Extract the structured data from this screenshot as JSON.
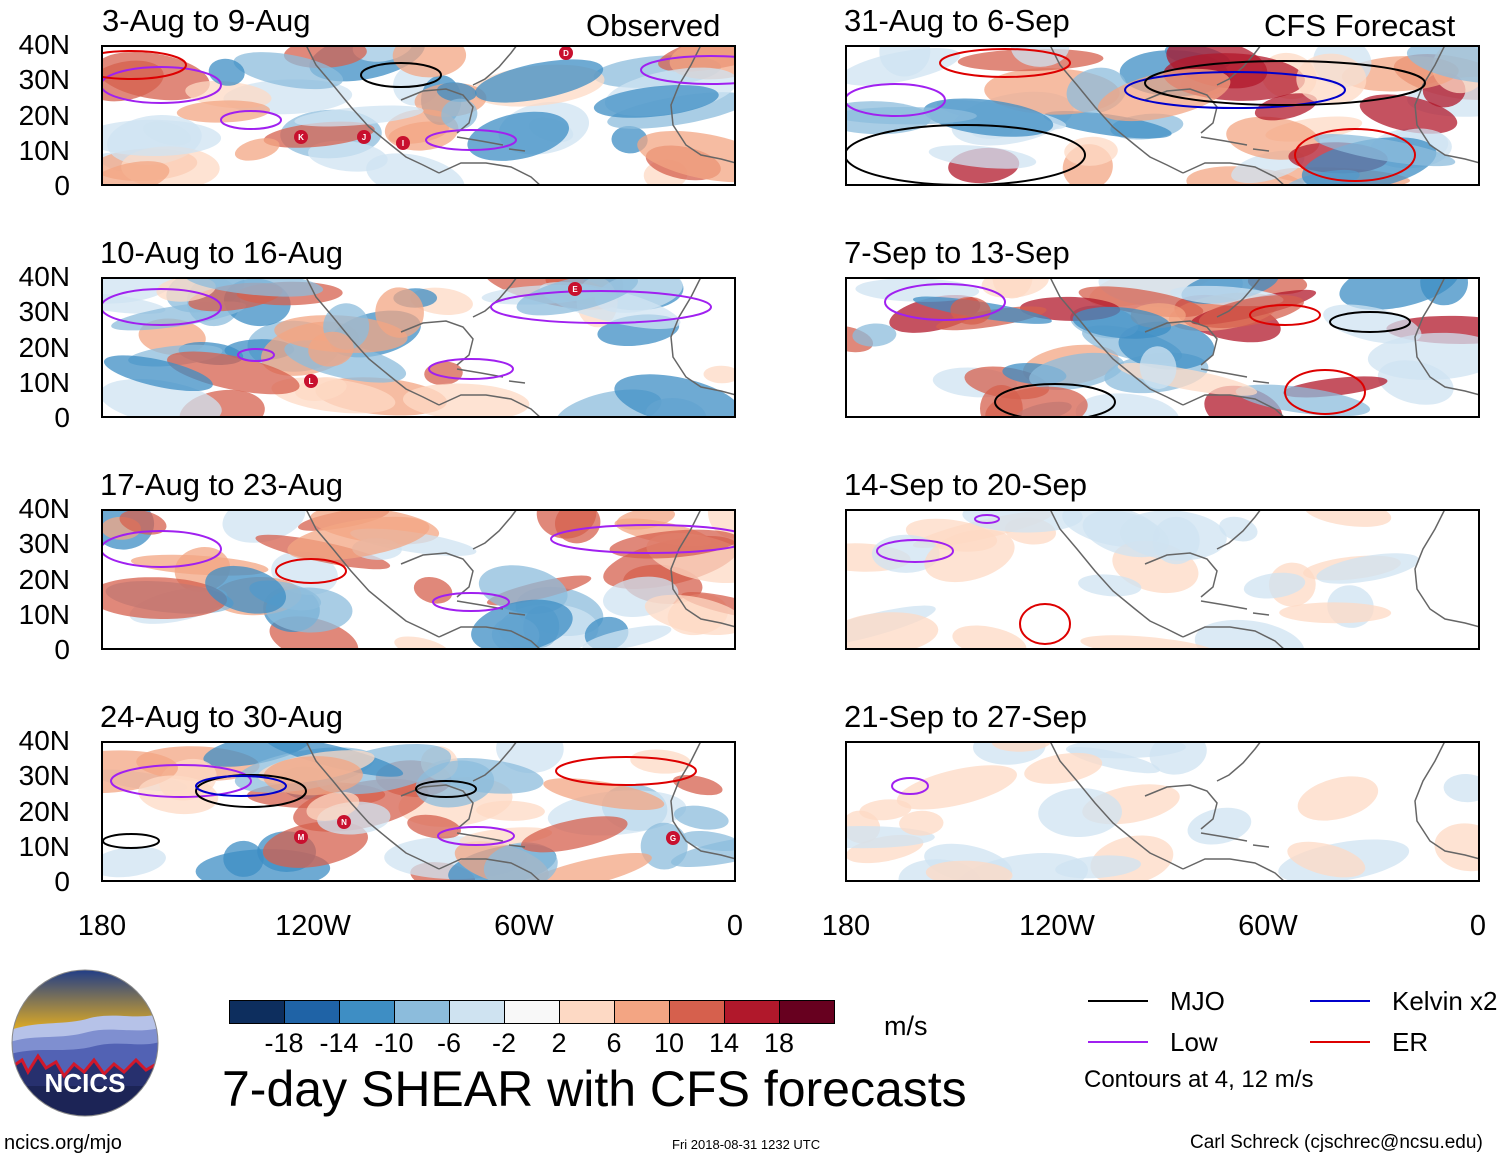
{
  "header": {
    "observed_label": "Observed",
    "forecast_label": "CFS Forecast"
  },
  "panels": [
    {
      "id": "obs-1",
      "title": "3-Aug to 9-Aug",
      "column": "observed",
      "row": 0,
      "storms": [
        "K",
        "J",
        "I",
        "D"
      ]
    },
    {
      "id": "obs-2",
      "title": "10-Aug to 16-Aug",
      "column": "observed",
      "row": 1,
      "storms": [
        "L",
        "E"
      ]
    },
    {
      "id": "obs-3",
      "title": "17-Aug to 23-Aug",
      "column": "observed",
      "row": 2,
      "storms": []
    },
    {
      "id": "obs-4",
      "title": "24-Aug to 30-Aug",
      "column": "observed",
      "row": 3,
      "storms": [
        "M",
        "N",
        "G"
      ]
    },
    {
      "id": "fc-1",
      "title": "31-Aug to 6-Sep",
      "column": "forecast",
      "row": 0,
      "storms": []
    },
    {
      "id": "fc-2",
      "title": "7-Sep to 13-Sep",
      "column": "forecast",
      "row": 1,
      "storms": []
    },
    {
      "id": "fc-3",
      "title": "14-Sep to 20-Sep",
      "column": "forecast",
      "row": 2,
      "storms": []
    },
    {
      "id": "fc-4",
      "title": "21-Sep to 27-Sep",
      "column": "forecast",
      "row": 3,
      "storms": []
    }
  ],
  "axes": {
    "lat_labels": [
      "40N",
      "30N",
      "20N",
      "10N",
      "0"
    ],
    "lon_labels": [
      "180",
      "120W",
      "60W",
      "0"
    ],
    "lat_range": [
      0,
      40
    ],
    "lon_range": [
      -180,
      0
    ]
  },
  "colorbar": {
    "levels": [
      "-18",
      "-14",
      "-10",
      "-6",
      "-2",
      "2",
      "6",
      "10",
      "14",
      "18"
    ],
    "colors": [
      "#0d2e5e",
      "#1f63a6",
      "#3e8ec4",
      "#8cbcdc",
      "#cfe3f1",
      "#f8f8f8",
      "#fdd9c4",
      "#f3a583",
      "#d6604d",
      "#b1182b",
      "#67001f"
    ],
    "units": "m/s"
  },
  "legend": {
    "items": [
      {
        "label": "MJO",
        "color": "#000000"
      },
      {
        "label": "Kelvin x2",
        "color": "#0000cc"
      },
      {
        "label": "Low",
        "color": "#a020f0"
      },
      {
        "label": "ER",
        "color": "#dd0000"
      }
    ],
    "contours_note": "Contours at 4, 12 m/s"
  },
  "title": "7-day SHEAR with CFS forecasts",
  "footer": {
    "url": "ncics.org/mjo",
    "timestamp": "Fri 2018-08-31 1232 UTC",
    "author": "Carl Schreck (cjschrec@ncsu.edu)"
  },
  "logo": {
    "text": "NCICS"
  }
}
